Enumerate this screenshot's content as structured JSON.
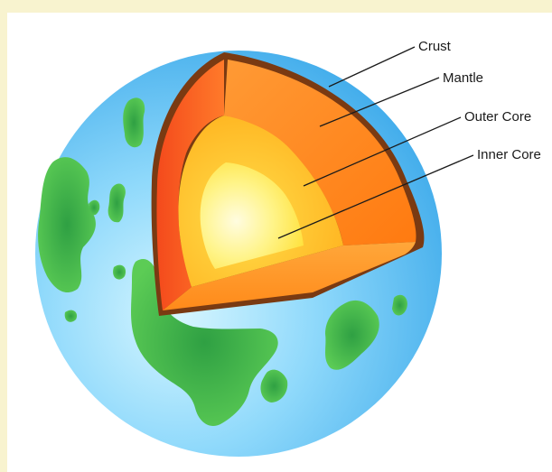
{
  "labels": {
    "crust": "Crust",
    "mantle": "Mantle",
    "outer_core": "Outer Core",
    "inner_core": "Inner Core"
  },
  "colors": {
    "background_border": "#f8f3cf",
    "ocean": "#4db6ee",
    "land": "#3cb44a",
    "crust": "#7a3a12",
    "mantle": "#ff8a1f",
    "outer_core": "#ffb52a",
    "inner_core": "#fff4b0"
  }
}
